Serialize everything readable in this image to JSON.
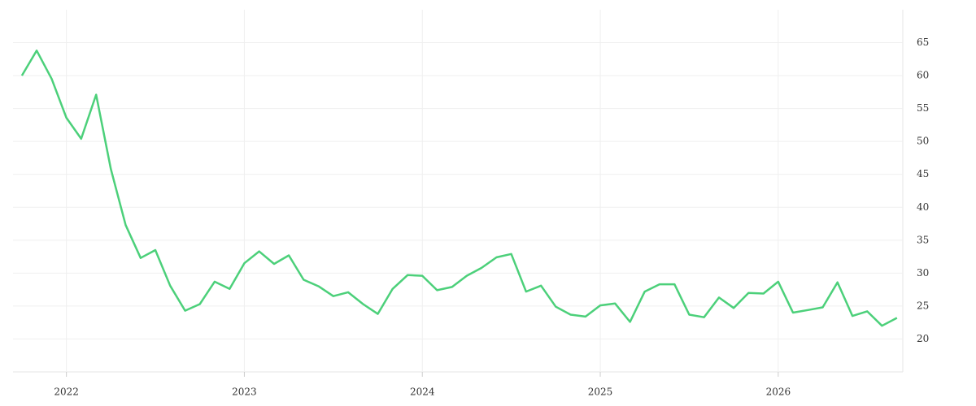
{
  "chart_data": {
    "type": "line",
    "x": [
      2021.75,
      2021.833,
      2021.917,
      2022,
      2022.083,
      2022.167,
      2022.25,
      2022.333,
      2022.417,
      2022.5,
      2022.583,
      2022.667,
      2022.75,
      2022.833,
      2022.917,
      2023,
      2023.083,
      2023.167,
      2023.25,
      2023.333,
      2023.417,
      2023.5,
      2023.583,
      2023.667,
      2023.75,
      2023.833,
      2023.917,
      2024,
      2024.083,
      2024.167,
      2024.25,
      2024.333,
      2024.417,
      2024.5,
      2024.583,
      2024.667,
      2024.75,
      2024.833,
      2024.917,
      2025,
      2025.083,
      2025.167,
      2025.25,
      2025.333,
      2025.417,
      2025.5,
      2025.583,
      2025.667,
      2025.75,
      2025.833,
      2025.917,
      2026,
      2026.083,
      2026.167,
      2026.25,
      2026.333,
      2026.417,
      2026.5,
      2026.583,
      2026.667
    ],
    "series": [
      {
        "color": "#4cd07a",
        "values": [
          60,
          63.8,
          59.5,
          53.6,
          50.4,
          57.1,
          45.8,
          37.3,
          32.3,
          33.5,
          28.1,
          24.3,
          25.3,
          28.7,
          27.6,
          31.5,
          33.3,
          31.4,
          32.7,
          29,
          28,
          26.5,
          27.1,
          25.3,
          23.8,
          27.6,
          29.7,
          29.6,
          27.4,
          27.9,
          29.6,
          30.8,
          32.4,
          32.9,
          27.2,
          28.1,
          24.9,
          23.7,
          23.4,
          25.1,
          25.4,
          22.6,
          27.2,
          28.3,
          28.3,
          23.7,
          23.3,
          26.3,
          24.7,
          27,
          26.9,
          28.7,
          24,
          24.4,
          24.8,
          28.6,
          23.5,
          24.2,
          22,
          23.2
        ]
      }
    ],
    "xlim": [
      2021.7,
      2026.7
    ],
    "xticks": [
      2022,
      2023,
      2024,
      2025,
      2026
    ],
    "ylim": [
      15,
      70
    ],
    "yticks": [
      20,
      25,
      30,
      35,
      40,
      45,
      50,
      55,
      60,
      65
    ],
    "grid": true
  }
}
